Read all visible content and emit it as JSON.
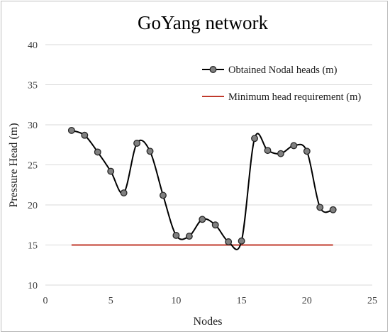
{
  "chart_data": {
    "type": "line",
    "title": "GoYang network",
    "xlabel": "Nodes",
    "ylabel": "Pressure Head (m)",
    "xlim": [
      0,
      25
    ],
    "ylim": [
      10,
      40
    ],
    "xticks": [
      "0",
      "5",
      "10",
      "15",
      "20",
      "25"
    ],
    "yticks": [
      "10",
      "15",
      "20",
      "25",
      "30",
      "35",
      "40"
    ],
    "grid": "horizontal",
    "legend_position": "top-right",
    "series": [
      {
        "name": "Obtained Nodal heads (m)",
        "color": "#000000",
        "marker": "circle",
        "marker_color": "#808080",
        "smooth": true,
        "x": [
          2,
          3,
          4,
          5,
          6,
          7,
          8,
          9,
          10,
          11,
          12,
          13,
          14,
          15,
          16,
          17,
          18,
          19,
          20,
          21,
          22
        ],
        "y": [
          29.3,
          28.7,
          26.6,
          24.2,
          21.5,
          27.7,
          26.7,
          21.2,
          16.2,
          16.1,
          18.2,
          17.5,
          15.4,
          15.5,
          28.3,
          26.8,
          26.4,
          27.4,
          26.7,
          19.7,
          19.4
        ]
      },
      {
        "name": "Minimum head requirement (m)",
        "color": "#c0392b",
        "marker": "none",
        "x": [
          2,
          22
        ],
        "y": [
          15,
          15
        ]
      }
    ]
  }
}
